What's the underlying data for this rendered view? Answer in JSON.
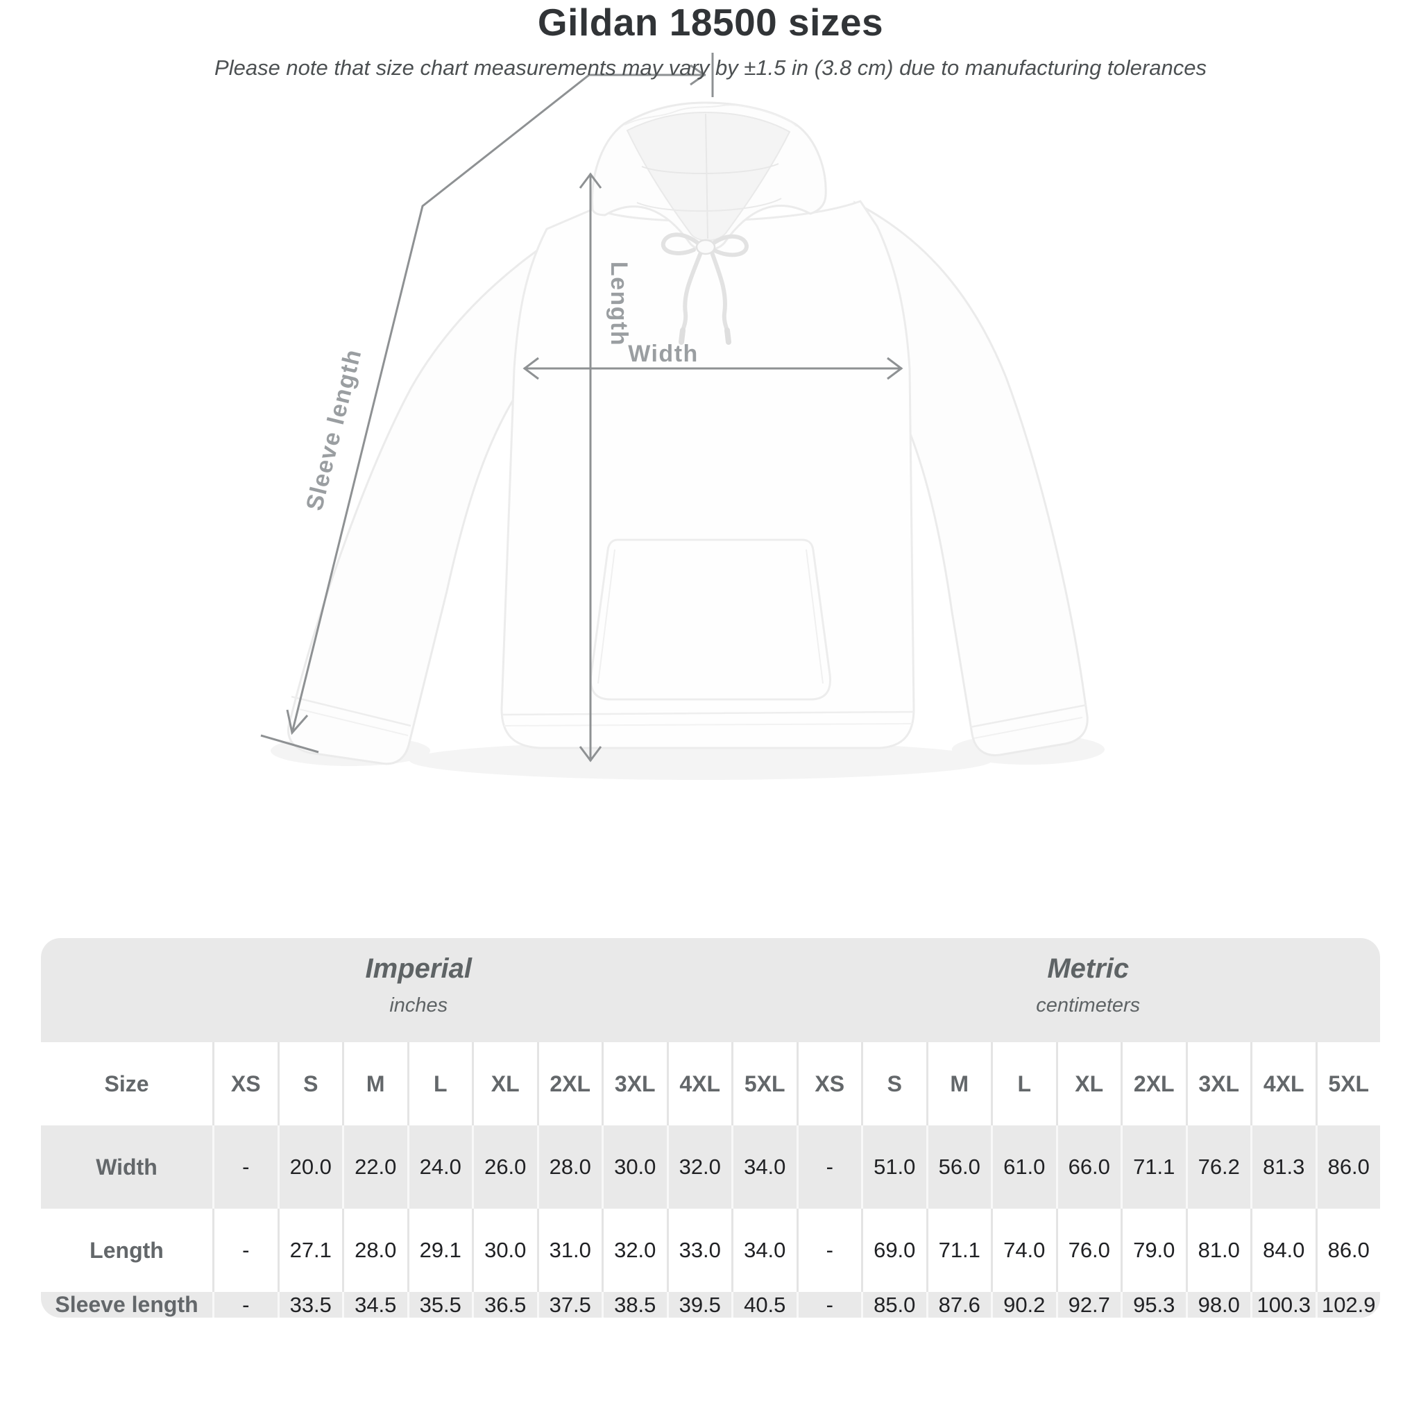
{
  "title": "Gildan 18500 sizes",
  "subtitle": "Please note that size chart measurements may vary by ±1.5 in (3.8 cm) due to manufacturing tolerances",
  "diagram": {
    "length_label": "Length",
    "width_label": "Width",
    "sleeve_label": "Sleeve length"
  },
  "table": {
    "size_col_header": "Size",
    "unit_groups": [
      {
        "label": "Imperial",
        "sublabel": "inches"
      },
      {
        "label": "Metric",
        "sublabel": "centimeters"
      }
    ],
    "sizes": [
      "XS",
      "S",
      "M",
      "L",
      "XL",
      "2XL",
      "3XL",
      "4XL",
      "5XL"
    ],
    "rows": [
      {
        "label": "Width",
        "imperial": [
          "-",
          "20.0",
          "22.0",
          "24.0",
          "26.0",
          "28.0",
          "30.0",
          "32.0",
          "34.0"
        ],
        "metric": [
          "-",
          "51.0",
          "56.0",
          "61.0",
          "66.0",
          "71.1",
          "76.2",
          "81.3",
          "86.0"
        ]
      },
      {
        "label": "Length",
        "imperial": [
          "-",
          "27.1",
          "28.0",
          "29.1",
          "30.0",
          "31.0",
          "32.0",
          "33.0",
          "34.0"
        ],
        "metric": [
          "-",
          "69.0",
          "71.1",
          "74.0",
          "76.0",
          "79.0",
          "81.0",
          "84.0",
          "86.0"
        ]
      },
      {
        "label": "Sleeve length",
        "imperial": [
          "-",
          "33.5",
          "34.5",
          "35.5",
          "36.5",
          "37.5",
          "38.5",
          "39.5",
          "40.5"
        ],
        "metric": [
          "-",
          "85.0",
          "87.6",
          "90.2",
          "92.7",
          "95.3",
          "98.0",
          "100.3",
          "102.9"
        ]
      }
    ]
  },
  "colors": {
    "measurement_line": "#8e9193",
    "diagram_label": "#9a9ea1",
    "band_background": "#e9e9e9",
    "row_stripe": "#e9e9e9",
    "value_text": "#202124",
    "heading_text": "#63676a",
    "title_text": "#313437"
  }
}
